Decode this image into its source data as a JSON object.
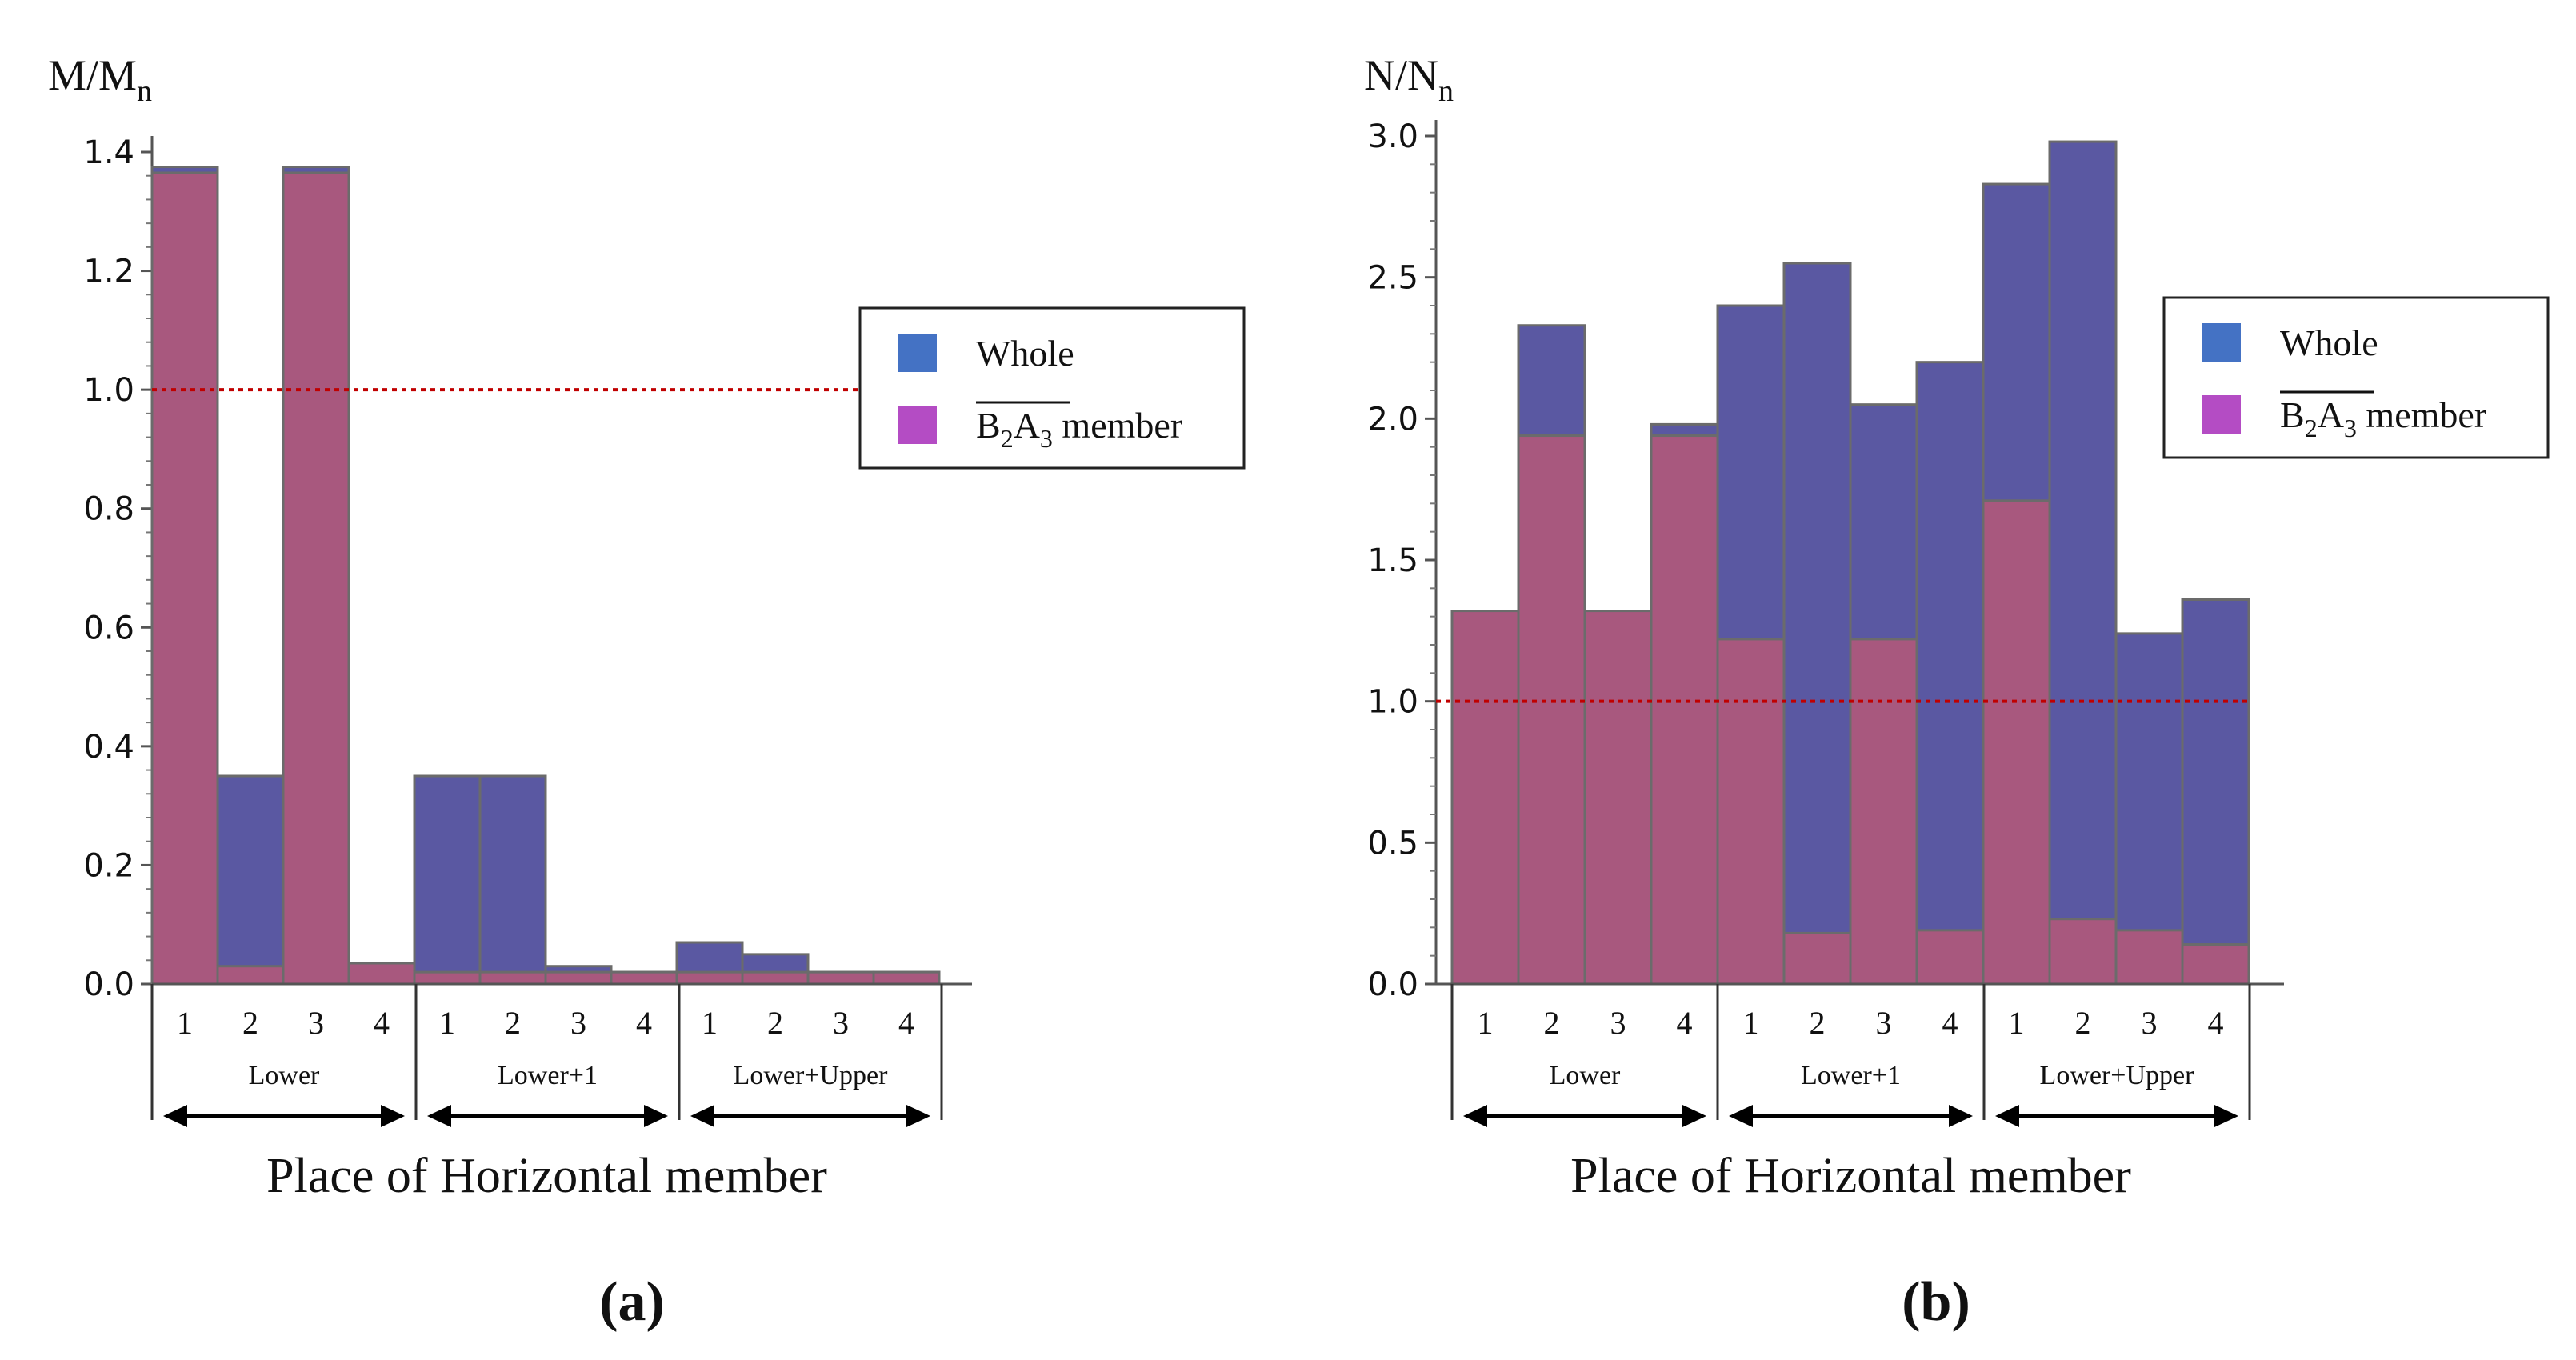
{
  "figure": {
    "panels": [
      {
        "panel_label": "(a)",
        "y_label": {
          "main": "M/M",
          "sub": "n"
        },
        "x_label": "Place of Horizontal member",
        "legend": {
          "entries": [
            {
              "name": "Whole",
              "color": "#4472C4"
            },
            {
              "name_main": "B",
              "sub1": "2",
              "mid": "A",
              "sub2": "3",
              "suffix": " member",
              "color": "#B44CC4"
            }
          ]
        }
      },
      {
        "panel_label": "(b)",
        "y_label": {
          "main": "N/N",
          "sub": "n"
        },
        "x_label": "Place of Horizontal member",
        "legend": {
          "entries": [
            {
              "name": "Whole",
              "color": "#4472C4"
            },
            {
              "name_main": "B",
              "sub1": "2",
              "mid": "A",
              "sub2": "3",
              "suffix": " member",
              "color": "#B44CC4"
            }
          ]
        }
      }
    ]
  },
  "chart_data": [
    {
      "type": "bar",
      "title": "(a)",
      "xlabel": "Place of Horizontal member",
      "ylabel": "M/Mn",
      "ylim": [
        0,
        1.4
      ],
      "yticks": [
        "0.0",
        "0.2",
        "0.4",
        "0.6",
        "0.8",
        "1.0",
        "1.2",
        "1.4"
      ],
      "reference_line": 1.0,
      "groups": [
        "Lower",
        "Lower+1",
        "Lower+Upper"
      ],
      "categories": [
        "1",
        "2",
        "3",
        "4",
        "1",
        "2",
        "3",
        "4",
        "1",
        "2",
        "3",
        "4"
      ],
      "series": [
        {
          "name": "Whole",
          "values": [
            1.375,
            0.35,
            1.375,
            0.035,
            0.35,
            0.35,
            0.03,
            0.02,
            0.07,
            0.05,
            0.02,
            0.02
          ]
        },
        {
          "name": "B2A3 member",
          "values": [
            1.365,
            0.03,
            1.365,
            0.035,
            0.02,
            0.02,
            0.02,
            0.02,
            0.02,
            0.02,
            0.02,
            0.02
          ]
        }
      ]
    },
    {
      "type": "bar",
      "title": "(b)",
      "xlabel": "Place of Horizontal member",
      "ylabel": "N/Nn",
      "ylim": [
        0,
        3.0
      ],
      "yticks": [
        "0.0",
        "0.5",
        "1.0",
        "1.5",
        "2.0",
        "2.5",
        "3.0"
      ],
      "reference_line": 1.0,
      "groups": [
        "Lower",
        "Lower+1",
        "Lower+Upper"
      ],
      "categories": [
        "1",
        "2",
        "3",
        "4",
        "1",
        "2",
        "3",
        "4",
        "1",
        "2",
        "3",
        "4"
      ],
      "series": [
        {
          "name": "Whole",
          "values": [
            1.32,
            2.33,
            1.32,
            1.98,
            2.4,
            2.55,
            2.05,
            2.2,
            2.83,
            2.98,
            1.24,
            1.36
          ]
        },
        {
          "name": "B2A3 member",
          "values": [
            1.32,
            1.94,
            1.32,
            1.94,
            1.22,
            0.18,
            1.22,
            0.19,
            1.71,
            0.23,
            0.19,
            0.14
          ]
        }
      ]
    }
  ]
}
